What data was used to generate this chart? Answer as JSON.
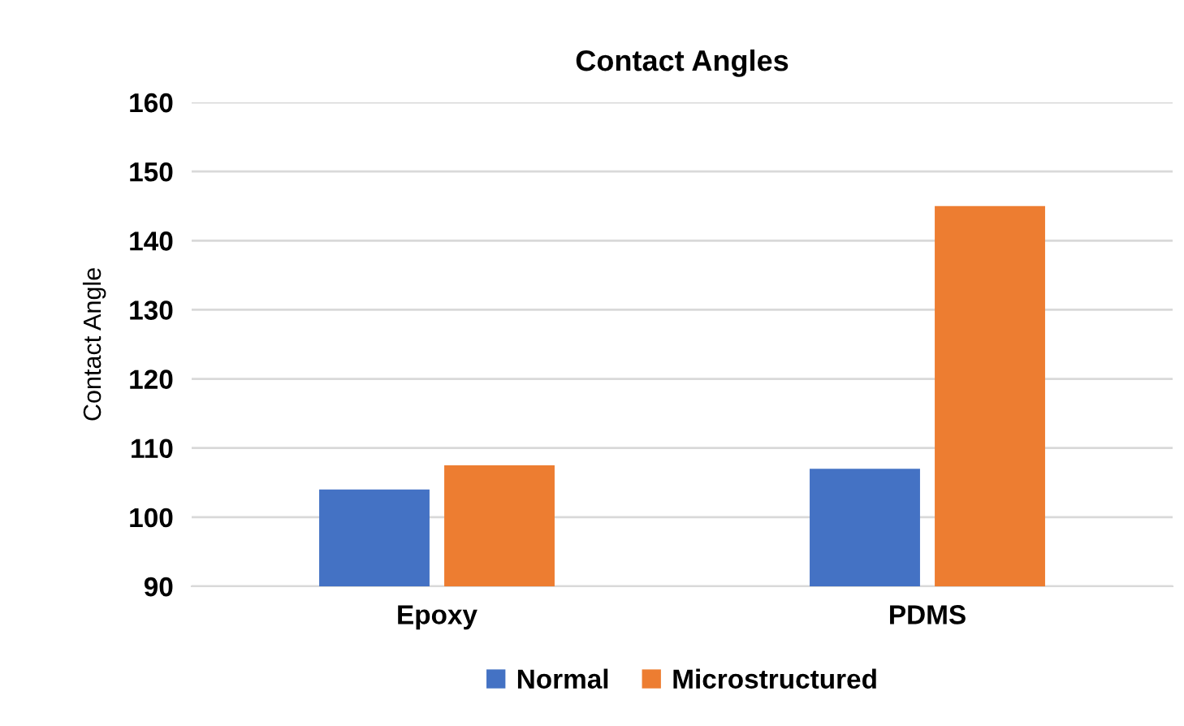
{
  "chart_data": {
    "type": "bar",
    "title": "Contact Angles",
    "ylabel": "Contact Angle",
    "categories": [
      "Epoxy",
      "PDMS"
    ],
    "series": [
      {
        "name": "Normal",
        "color": "#4472c4",
        "values": [
          104,
          107
        ]
      },
      {
        "name": "Microstructured",
        "color": "#ed7d31",
        "values": [
          107.5,
          145
        ]
      }
    ],
    "ylim": [
      90,
      160
    ],
    "yticks": [
      90,
      100,
      110,
      120,
      130,
      140,
      150,
      160
    ],
    "grid": "y",
    "legend": "bottom"
  }
}
